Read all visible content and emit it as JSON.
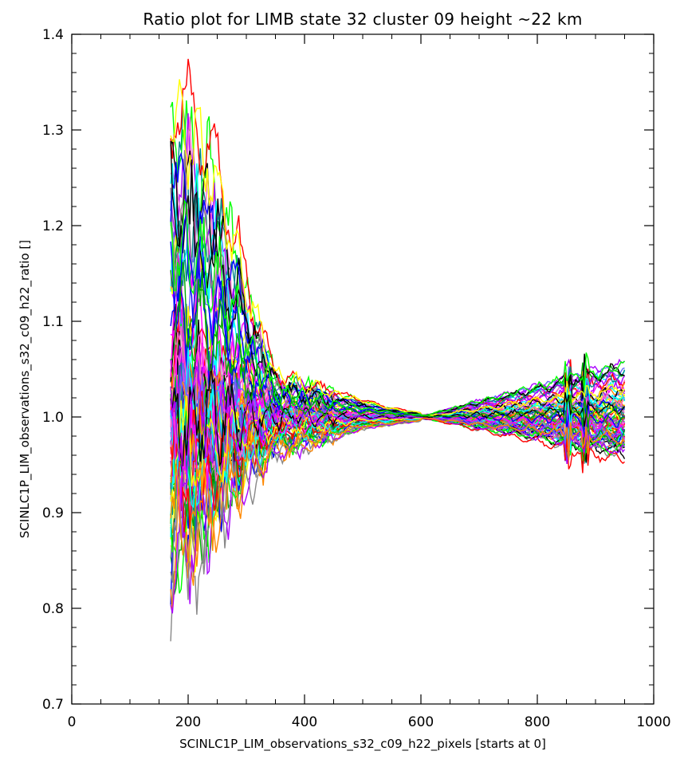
{
  "chart_data": {
    "type": "line",
    "title": "Ratio plot for LIMB state 32 cluster 09 height ~22 km",
    "xlabel": "SCINLC1P_LIM_observations_s32_c09_h22_pixels [starts at 0]",
    "ylabel": "SCINLC1P_LIM_observations_s32_c09_h22_ratio []",
    "xlim": [
      0,
      1000
    ],
    "ylim": [
      0.7,
      1.4
    ],
    "x_ticks": [
      0,
      200,
      400,
      600,
      800,
      1000
    ],
    "x_tick_labels": [
      "0",
      "200",
      "400",
      "600",
      "800",
      "1000"
    ],
    "y_ticks": [
      0.7,
      0.8,
      0.9,
      1.0,
      1.1,
      1.2,
      1.3,
      1.4
    ],
    "y_tick_labels": [
      "0.7",
      "0.8",
      "0.9",
      "1.0",
      "1.1",
      "1.2",
      "1.3",
      "1.4"
    ],
    "grid": false,
    "legend": "none",
    "x_range_of_data": [
      170,
      950
    ],
    "series_count_estimate": 80,
    "envelope": {
      "x": [
        170,
        200,
        250,
        300,
        350,
        400,
        450,
        500,
        550,
        600,
        650,
        700,
        750,
        800,
        850,
        900,
        950
      ],
      "y_max": [
        1.37,
        1.36,
        1.29,
        1.16,
        1.05,
        1.04,
        1.03,
        1.02,
        1.01,
        1.005,
        1.01,
        1.02,
        1.025,
        1.035,
        1.045,
        1.05,
        1.055
      ],
      "y_min": [
        0.8,
        0.82,
        0.88,
        0.92,
        0.95,
        0.96,
        0.97,
        0.985,
        0.99,
        0.995,
        0.99,
        0.98,
        0.975,
        0.97,
        0.96,
        0.95,
        0.955
      ]
    },
    "colors": [
      "#ff0000",
      "#ff00ff",
      "#0000ff",
      "#00ff00",
      "#00ffff",
      "#ffff00",
      "#000000",
      "#aa00ff",
      "#00aa00",
      "#ff8800",
      "#888888",
      "#008888",
      "#ff66cc",
      "#6666ff"
    ]
  }
}
